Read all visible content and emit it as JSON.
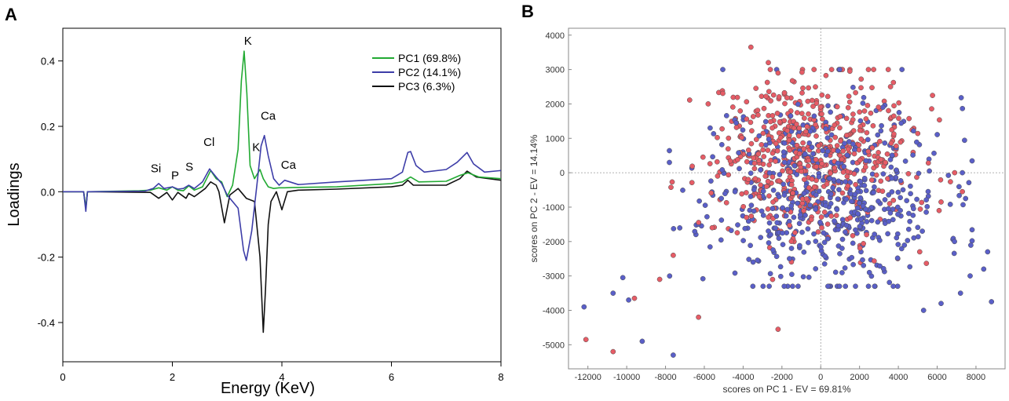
{
  "panels": {
    "a_letter": "A",
    "b_letter": "B"
  },
  "chart_data": [
    {
      "type": "line",
      "title": "",
      "xlabel": "Energy (KeV)",
      "ylabel": "Loadings",
      "xlim": [
        0,
        8
      ],
      "ylim": [
        -0.52,
        0.5
      ],
      "xticks": [
        0,
        2,
        4,
        6,
        8
      ],
      "yticks": [
        -0.4,
        -0.2,
        0.0,
        0.2,
        0.4
      ],
      "xtick_labels": [
        "0",
        "2",
        "4",
        "6",
        "8"
      ],
      "ytick_labels": [
        "-0.4",
        "-0.2",
        "0.0",
        "0.2",
        "0.4"
      ],
      "legend_position": "top-right",
      "colors": {
        "PC1": "#22aa33",
        "PC2": "#3d3da8",
        "PC3": "#111111"
      },
      "series": [
        {
          "name": "PC1 (69.8%)",
          "color": "#22aa33",
          "x": [
            0,
            0.38,
            0.42,
            0.45,
            0.5,
            1.4,
            1.6,
            1.75,
            1.9,
            2.0,
            2.1,
            2.2,
            2.3,
            2.4,
            2.55,
            2.7,
            2.8,
            2.9,
            3.0,
            3.1,
            3.2,
            3.26,
            3.31,
            3.36,
            3.42,
            3.5,
            3.6,
            3.66,
            3.75,
            3.85,
            3.95,
            4.05,
            4.2,
            5.0,
            6.0,
            6.2,
            6.35,
            6.5,
            7.0,
            7.25,
            7.4,
            7.6,
            8.0
          ],
          "y": [
            0,
            0,
            -0.05,
            0,
            0,
            0.003,
            0.005,
            0.012,
            0.005,
            0.015,
            0.005,
            0.003,
            0.018,
            0.005,
            0.015,
            0.065,
            0.04,
            0.03,
            -0.015,
            0.02,
            0.13,
            0.34,
            0.43,
            0.3,
            0.08,
            0.04,
            0.068,
            0.04,
            0.015,
            0.01,
            0.012,
            0.012,
            0.013,
            0.015,
            0.025,
            0.03,
            0.045,
            0.03,
            0.032,
            0.05,
            0.058,
            0.045,
            0.04
          ]
        },
        {
          "name": "PC2 (14.1%)",
          "color": "#3d3da8",
          "x": [
            0,
            0.38,
            0.42,
            0.45,
            0.5,
            1.5,
            1.65,
            1.75,
            1.85,
            2.0,
            2.1,
            2.2,
            2.3,
            2.4,
            2.55,
            2.68,
            2.8,
            2.9,
            3.0,
            3.2,
            3.3,
            3.35,
            3.45,
            3.55,
            3.62,
            3.68,
            3.75,
            3.85,
            3.95,
            4.05,
            4.3,
            5.0,
            6.0,
            6.2,
            6.3,
            6.35,
            6.45,
            6.6,
            7.0,
            7.2,
            7.38,
            7.5,
            7.7,
            8.0
          ],
          "y": [
            0,
            0,
            -0.06,
            0,
            0,
            0.002,
            0.01,
            0.025,
            0.01,
            0.015,
            0.008,
            0.01,
            0.02,
            0.01,
            0.03,
            0.07,
            0.045,
            0.025,
            -0.01,
            -0.05,
            -0.18,
            -0.21,
            -0.12,
            0.03,
            0.14,
            0.172,
            0.11,
            0.04,
            0.02,
            0.035,
            0.022,
            0.03,
            0.04,
            0.06,
            0.12,
            0.123,
            0.08,
            0.06,
            0.068,
            0.09,
            0.12,
            0.085,
            0.06,
            0.065
          ]
        },
        {
          "name": "PC3 (6.3%)",
          "color": "#111111",
          "x": [
            0,
            0.38,
            0.42,
            0.45,
            0.5,
            1.6,
            1.75,
            1.9,
            2.0,
            2.1,
            2.25,
            2.3,
            2.4,
            2.6,
            2.7,
            2.8,
            2.85,
            2.95,
            3.05,
            3.2,
            3.35,
            3.5,
            3.6,
            3.66,
            3.7,
            3.75,
            3.8,
            3.9,
            4.0,
            4.1,
            4.3,
            5.0,
            6.0,
            6.2,
            6.3,
            6.4,
            7.0,
            7.25,
            7.38,
            7.55,
            8.0
          ],
          "y": [
            0,
            0,
            -0.05,
            0,
            0,
            -0.002,
            -0.02,
            -0.002,
            -0.025,
            -0.002,
            -0.02,
            -0.005,
            -0.015,
            0.01,
            0.03,
            0.02,
            0.0,
            -0.095,
            -0.01,
            0.01,
            -0.02,
            -0.03,
            -0.2,
            -0.43,
            -0.3,
            -0.1,
            -0.03,
            0.0,
            -0.055,
            0.0,
            0.005,
            0.008,
            0.015,
            0.02,
            0.035,
            0.02,
            0.02,
            0.04,
            0.063,
            0.045,
            0.035
          ]
        }
      ],
      "annotations": [
        {
          "text": "Si",
          "x": 1.7,
          "y": 0.06
        },
        {
          "text": "P",
          "x": 2.05,
          "y": 0.038
        },
        {
          "text": "S",
          "x": 2.31,
          "y": 0.065
        },
        {
          "text": "Cl",
          "x": 2.67,
          "y": 0.14
        },
        {
          "text": "K",
          "x": 3.38,
          "y": 0.45
        },
        {
          "text": "Ca",
          "x": 3.75,
          "y": 0.22
        },
        {
          "text": "K",
          "x": 3.53,
          "y": 0.125
        },
        {
          "text": "Ca",
          "x": 4.12,
          "y": 0.07
        }
      ]
    },
    {
      "type": "scatter",
      "title": "",
      "xlabel": "scores on PC 1 - EV = 69.81%",
      "ylabel": "scores on PC 2 - EV = 14.14%",
      "xlim": [
        -13000,
        9500
      ],
      "ylim": [
        -5700,
        4200
      ],
      "xticks": [
        -12000,
        -10000,
        -8000,
        -6000,
        -4000,
        -2000,
        0,
        2000,
        4000,
        6000,
        8000
      ],
      "yticks": [
        -5000,
        -4000,
        -3000,
        -2000,
        -1000,
        0,
        1000,
        2000,
        3000,
        4000
      ],
      "xtick_labels": [
        "-12000",
        "-10000",
        "-8000",
        "-6000",
        "-4000",
        "-2000",
        "0",
        "2000",
        "4000",
        "6000",
        "8000"
      ],
      "ytick_labels": [
        "-5000",
        "-4000",
        "-3000",
        "-2000",
        "-1000",
        "0",
        "1000",
        "2000",
        "3000",
        "4000"
      ],
      "grid": "dotted zero lines",
      "groups": [
        {
          "name": "blue",
          "color": "#5a5fc8",
          "count": 560,
          "seed": 11,
          "center": [
            300,
            -600
          ],
          "spread": [
            3000,
            1400
          ],
          "points": [
            [
              -12200,
              -3900
            ],
            [
              -10700,
              -3500
            ],
            [
              -10200,
              -3050
            ],
            [
              -9900,
              -3700
            ],
            [
              -9200,
              -4900
            ],
            [
              -7600,
              -5300
            ],
            [
              -7800,
              300
            ],
            [
              -5000,
              0
            ],
            [
              -5700,
              1300
            ],
            [
              8800,
              -3750
            ],
            [
              8600,
              -2300
            ],
            [
              8400,
              -2800
            ],
            [
              7700,
              -3000
            ],
            [
              7200,
              -3500
            ],
            [
              6200,
              -3800
            ],
            [
              5300,
              -4000
            ],
            [
              7300,
              0
            ],
            [
              5600,
              50
            ],
            [
              3200,
              1900
            ]
          ]
        },
        {
          "name": "red",
          "color": "#e65c66",
          "count": 560,
          "seed": 29,
          "center": [
            -700,
            500
          ],
          "spread": [
            2600,
            1200
          ],
          "points": [
            [
              -12100,
              -4850
            ],
            [
              -10700,
              -5200
            ],
            [
              -9600,
              -3650
            ],
            [
              -8300,
              -3100
            ],
            [
              -7600,
              -2400
            ],
            [
              -6300,
              -4200
            ],
            [
              -2200,
              -4550
            ],
            [
              -3600,
              3650
            ],
            [
              -2700,
              3200
            ],
            [
              -2200,
              2900
            ],
            [
              1500,
              2950
            ],
            [
              -5800,
              2000
            ],
            [
              6900,
              0
            ],
            [
              7300,
              -550
            ],
            [
              6200,
              -850
            ],
            [
              5100,
              -2300
            ],
            [
              6100,
              -1100
            ]
          ]
        }
      ]
    }
  ]
}
